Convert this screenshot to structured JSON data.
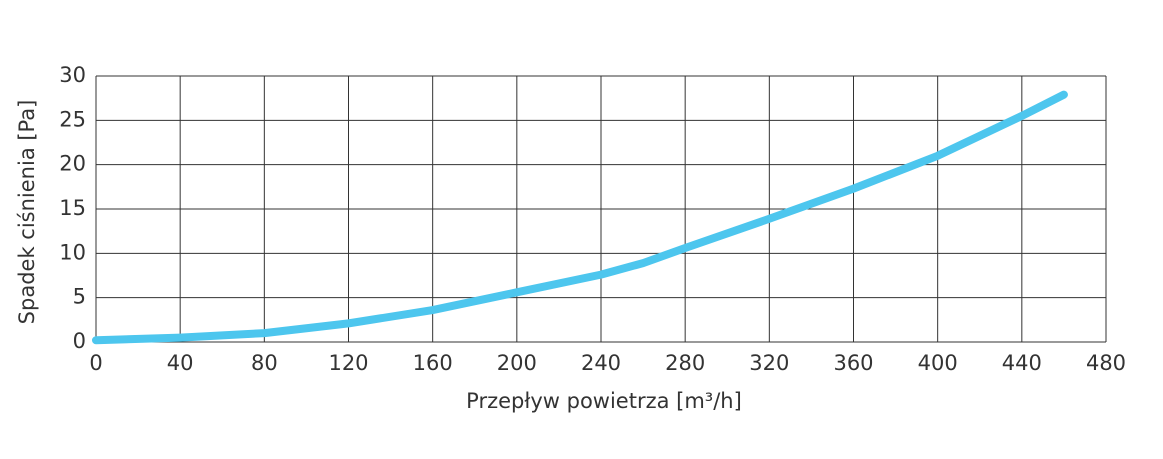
{
  "chart_data": {
    "type": "line",
    "x_label": "Przepływ powietrza [m³/h]",
    "y_label": "Spadek ciśnienia [Pa]",
    "x": [
      0,
      40,
      80,
      120,
      160,
      200,
      240,
      260,
      280,
      320,
      360,
      400,
      440,
      460
    ],
    "values": [
      0.2,
      0.5,
      1.0,
      2.1,
      3.6,
      5.6,
      7.6,
      8.9,
      10.6,
      13.9,
      17.3,
      21.0,
      25.5,
      27.9
    ],
    "color": "#4dc6ee",
    "xlim": [
      0,
      480
    ],
    "xticks": [
      0,
      40,
      80,
      120,
      160,
      200,
      240,
      280,
      320,
      360,
      400,
      440,
      480
    ],
    "ylim": [
      0,
      30
    ],
    "yticks": [
      0,
      5,
      10,
      15,
      20,
      25,
      30
    ],
    "grid": true
  }
}
